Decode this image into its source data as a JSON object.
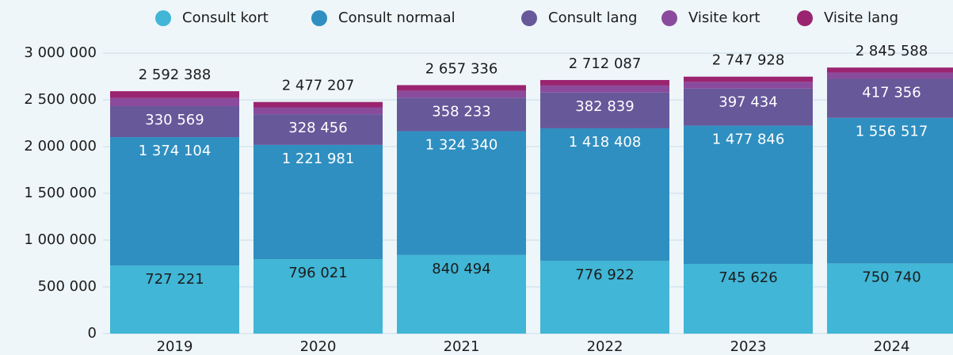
{
  "chart_data": {
    "type": "stacked-bar",
    "categories": [
      "2019",
      "2020",
      "2021",
      "2022",
      "2023",
      "2024"
    ],
    "series": [
      {
        "name": "Consult kort",
        "color": "#41b6d6",
        "values": [
          727221,
          796021,
          840494,
          776922,
          745626,
          750740
        ],
        "value_labels": [
          "727 221",
          "796 021",
          "840 494",
          "776 922",
          "745 626",
          "750 740"
        ]
      },
      {
        "name": "Consult normaal",
        "color": "#2f8fc0",
        "values": [
          1374104,
          1221981,
          1324340,
          1418408,
          1477846,
          1556517
        ],
        "value_labels": [
          "1 374 104",
          "1 221 981",
          "1 324 340",
          "1 418 408",
          "1 477 846",
          "1 556 517"
        ]
      },
      {
        "name": "Consult lang",
        "color": "#67589a",
        "values": [
          330569,
          328456,
          358233,
          382839,
          397434,
          417356
        ],
        "value_labels": [
          "330 569",
          "328 456",
          "358 233",
          "382 839",
          "397 434",
          "417 356"
        ]
      },
      {
        "name": "Visite kort",
        "color": "#8a4b9c",
        "values": [
          90000,
          73000,
          75000,
          75000,
          71000,
          68000
        ]
      },
      {
        "name": "Visite lang",
        "color": "#9b2470",
        "values": [
          70494,
          57749,
          59269,
          58918,
          56022,
          52975
        ]
      }
    ],
    "totals": [
      2592388,
      2477207,
      2657336,
      2712087,
      2747928,
      2845588
    ],
    "total_labels": [
      "2 592 388",
      "2 477 207",
      "2 657 336",
      "2 712 087",
      "2 747 928",
      "2 845 588"
    ],
    "ylim": [
      0,
      3000000
    ],
    "yticks": [
      0,
      {
        "value": 500000,
        "label": "500 000"
      },
      {
        "value": 1000000,
        "label": "1 000 000"
      },
      {
        "value": 1500000,
        "label": "1 500 000"
      },
      {
        "value": 2000000,
        "label": "2 000 000"
      },
      {
        "value": 2500000,
        "label": "2 500 000"
      },
      {
        "value": 3000000,
        "label": "3 000 000"
      }
    ],
    "grid": true
  }
}
